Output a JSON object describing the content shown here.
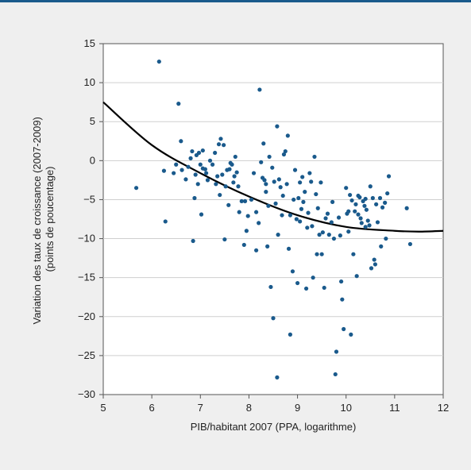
{
  "colors": {
    "header_rule": "#1a5a8c",
    "background": "#efefef",
    "plot_area": "#ffffff",
    "points": "#1a5a8c",
    "curve": "#000000",
    "grid": "#cfcfcf"
  },
  "chart_data": {
    "type": "scatter",
    "title": "",
    "xlabel": "PIB/habitant 2007 (PPA, logarithme)",
    "ylabel_lines": [
      "Variation des taux de croissance (2007-2009)",
      "(points de poucentage)"
    ],
    "xlim": [
      5,
      12
    ],
    "ylim": [
      -30,
      15
    ],
    "xticks": [
      5,
      6,
      7,
      8,
      9,
      10,
      11,
      12
    ],
    "yticks": [
      15,
      10,
      5,
      0,
      -5,
      -10,
      -15,
      -20,
      -25,
      -30
    ],
    "grid": "horizontal",
    "legend": "none",
    "trend_curve": {
      "type": "quadratic",
      "x": [
        5.0,
        6.0,
        7.0,
        8.0,
        9.0,
        10.0,
        11.0,
        11.5,
        12.0
      ],
      "y": [
        7.5,
        2.0,
        -1.6,
        -4.6,
        -7.0,
        -8.5,
        -9.0,
        -9.1,
        -9.0
      ]
    },
    "points": [
      [
        5.68,
        -3.5
      ],
      [
        6.15,
        12.7
      ],
      [
        6.25,
        -1.3
      ],
      [
        6.28,
        -7.8
      ],
      [
        6.45,
        -1.6
      ],
      [
        6.5,
        -0.5
      ],
      [
        6.55,
        7.3
      ],
      [
        6.6,
        2.5
      ],
      [
        6.62,
        -1.2
      ],
      [
        6.7,
        -2.4
      ],
      [
        6.75,
        -0.8
      ],
      [
        6.8,
        0.3
      ],
      [
        6.83,
        1.2
      ],
      [
        6.85,
        -10.3
      ],
      [
        6.88,
        -4.8
      ],
      [
        6.9,
        -1.8
      ],
      [
        6.92,
        0.7
      ],
      [
        6.95,
        -3.0
      ],
      [
        6.97,
        1.0
      ],
      [
        7.0,
        -0.5
      ],
      [
        7.02,
        -6.9
      ],
      [
        7.05,
        1.3
      ],
      [
        7.05,
        -1.0
      ],
      [
        7.1,
        -1.1
      ],
      [
        7.12,
        -1.6
      ],
      [
        7.15,
        -2.5
      ],
      [
        7.2,
        0.0
      ],
      [
        7.25,
        -0.5
      ],
      [
        7.3,
        1.0
      ],
      [
        7.32,
        -3.0
      ],
      [
        7.35,
        -2.0
      ],
      [
        7.38,
        2.1
      ],
      [
        7.4,
        -4.4
      ],
      [
        7.42,
        2.8
      ],
      [
        7.45,
        -1.8
      ],
      [
        7.48,
        2.0
      ],
      [
        7.5,
        -10.1
      ],
      [
        7.52,
        -3.3
      ],
      [
        7.55,
        -1.2
      ],
      [
        7.58,
        -5.7
      ],
      [
        7.6,
        -1.1
      ],
      [
        7.62,
        -0.3
      ],
      [
        7.65,
        -0.5
      ],
      [
        7.68,
        -2.8
      ],
      [
        7.7,
        -2.0
      ],
      [
        7.72,
        0.5
      ],
      [
        7.75,
        -1.5
      ],
      [
        7.78,
        -3.3
      ],
      [
        7.8,
        -6.6
      ],
      [
        7.85,
        -5.2
      ],
      [
        7.9,
        -10.8
      ],
      [
        7.92,
        -5.2
      ],
      [
        7.95,
        -9.0
      ],
      [
        7.98,
        -7.1
      ],
      [
        8.05,
        -5.0
      ],
      [
        8.1,
        -1.6
      ],
      [
        8.15,
        -6.6
      ],
      [
        8.15,
        -11.5
      ],
      [
        8.2,
        -8.0
      ],
      [
        8.22,
        9.1
      ],
      [
        8.25,
        -0.2
      ],
      [
        8.28,
        -2.2
      ],
      [
        8.3,
        2.2
      ],
      [
        8.32,
        -2.5
      ],
      [
        8.35,
        -3.0
      ],
      [
        8.38,
        -11.0
      ],
      [
        8.4,
        -5.8
      ],
      [
        8.42,
        0.5
      ],
      [
        8.45,
        -16.2
      ],
      [
        8.48,
        -0.9
      ],
      [
        8.5,
        -20.2
      ],
      [
        8.52,
        -2.7
      ],
      [
        8.55,
        -5.5
      ],
      [
        8.58,
        4.4
      ],
      [
        8.58,
        -27.8
      ],
      [
        8.6,
        -9.5
      ],
      [
        8.62,
        -2.4
      ],
      [
        8.65,
        -3.4
      ],
      [
        8.68,
        -7.0
      ],
      [
        8.7,
        -4.5
      ],
      [
        8.72,
        0.8
      ],
      [
        8.75,
        1.2
      ],
      [
        8.78,
        -3.0
      ],
      [
        8.8,
        3.2
      ],
      [
        8.82,
        -11.3
      ],
      [
        8.85,
        -22.3
      ],
      [
        8.85,
        -7.0
      ],
      [
        8.9,
        -14.2
      ],
      [
        8.92,
        -5.0
      ],
      [
        8.95,
        -1.2
      ],
      [
        8.98,
        -7.5
      ],
      [
        9.0,
        -15.7
      ],
      [
        9.02,
        -4.8
      ],
      [
        9.05,
        -2.8
      ],
      [
        9.08,
        -6.2
      ],
      [
        9.1,
        -2.1
      ],
      [
        9.12,
        -5.3
      ],
      [
        9.15,
        -4.0
      ],
      [
        9.18,
        -16.4
      ],
      [
        9.2,
        -8.6
      ],
      [
        9.22,
        -6.7
      ],
      [
        9.25,
        -1.6
      ],
      [
        9.28,
        -2.7
      ],
      [
        9.3,
        -8.4
      ],
      [
        9.32,
        -15.0
      ],
      [
        9.35,
        0.5
      ],
      [
        9.38,
        -4.3
      ],
      [
        9.4,
        -12.0
      ],
      [
        9.42,
        -6.1
      ],
      [
        9.45,
        -9.5
      ],
      [
        9.48,
        -2.8
      ],
      [
        9.5,
        -12.0
      ],
      [
        9.52,
        -9.2
      ],
      [
        9.55,
        -16.3
      ],
      [
        9.58,
        -7.4
      ],
      [
        9.62,
        -6.8
      ],
      [
        9.65,
        -9.5
      ],
      [
        9.7,
        -7.9
      ],
      [
        9.72,
        -5.3
      ],
      [
        9.75,
        -10.0
      ],
      [
        9.78,
        -27.4
      ],
      [
        9.8,
        -24.5
      ],
      [
        9.85,
        -7.3
      ],
      [
        9.88,
        -9.6
      ],
      [
        9.9,
        -15.5
      ],
      [
        9.92,
        -17.8
      ],
      [
        9.95,
        -21.6
      ],
      [
        10.0,
        -3.5
      ],
      [
        10.02,
        -6.8
      ],
      [
        10.05,
        -9.1
      ],
      [
        10.08,
        -4.4
      ],
      [
        10.1,
        -22.3
      ],
      [
        10.12,
        -5.1
      ],
      [
        10.15,
        -12.0
      ],
      [
        10.18,
        -6.5
      ],
      [
        10.2,
        -5.6
      ],
      [
        10.22,
        -14.8
      ],
      [
        10.25,
        -6.9
      ],
      [
        10.28,
        -4.7
      ],
      [
        10.3,
        -7.4
      ],
      [
        10.32,
        -8.0
      ],
      [
        10.35,
        -5.2
      ],
      [
        10.38,
        -5.8
      ],
      [
        10.4,
        -8.5
      ],
      [
        10.42,
        -6.3
      ],
      [
        10.45,
        -7.7
      ],
      [
        10.48,
        -8.3
      ],
      [
        10.5,
        -3.3
      ],
      [
        10.52,
        -13.8
      ],
      [
        10.55,
        -4.8
      ],
      [
        10.58,
        -12.7
      ],
      [
        10.6,
        -13.3
      ],
      [
        10.62,
        -5.6
      ],
      [
        10.65,
        -7.9
      ],
      [
        10.7,
        -4.8
      ],
      [
        10.72,
        -11.0
      ],
      [
        10.75,
        -6.0
      ],
      [
        10.8,
        -5.4
      ],
      [
        10.82,
        -10.0
      ],
      [
        10.85,
        -4.2
      ],
      [
        10.88,
        -2.0
      ],
      [
        11.25,
        -6.1
      ],
      [
        11.32,
        -10.7
      ],
      [
        10.4,
        -4.9
      ],
      [
        10.25,
        -4.5
      ],
      [
        10.05,
        -6.5
      ],
      [
        9.05,
        -7.8
      ],
      [
        8.35,
        -4.0
      ]
    ]
  }
}
